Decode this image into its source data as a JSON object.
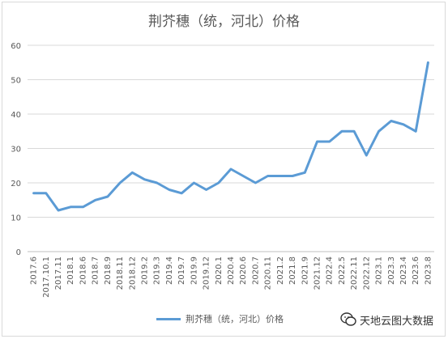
{
  "chart_data": {
    "type": "line",
    "title": "荆芥穗（统，河北）价格",
    "xlabel": "",
    "ylabel": "",
    "ylim": [
      0,
      60
    ],
    "yticks": [
      0,
      10,
      20,
      30,
      40,
      50,
      60
    ],
    "grid": "horizontal",
    "legend": "bottom",
    "categories": [
      "2017.6",
      "2017.10.1",
      "2017.11",
      "2018.1",
      "2018.6",
      "2018.7",
      "2018.9",
      "2018.11",
      "2018.12",
      "2019.2",
      "2019.3",
      "2019.4",
      "2019.7",
      "2019.9",
      "2019.12",
      "2020.1",
      "2020.4",
      "2020.6",
      "2020.7",
      "2020.11",
      "2021.2",
      "2021.8",
      "2021.9",
      "2021.12",
      "2022.4",
      "2022.5",
      "2022.11",
      "2022.12",
      "2023.1",
      "2023.3",
      "2023.4",
      "2023.6",
      "2023.8"
    ],
    "series": [
      {
        "name": "荆芥穗（统，河北）价格",
        "color": "#5b9bd5",
        "values": [
          17,
          17,
          12,
          13,
          13,
          15,
          16,
          20,
          23,
          21,
          20,
          18,
          17,
          20,
          18,
          20,
          24,
          22,
          20,
          22,
          22,
          22,
          23,
          32,
          32,
          35,
          35,
          28,
          35,
          38,
          37,
          35,
          55
        ]
      }
    ]
  },
  "watermark": {
    "text": "天地云图大数据",
    "icon": "wechat-logo-icon"
  }
}
